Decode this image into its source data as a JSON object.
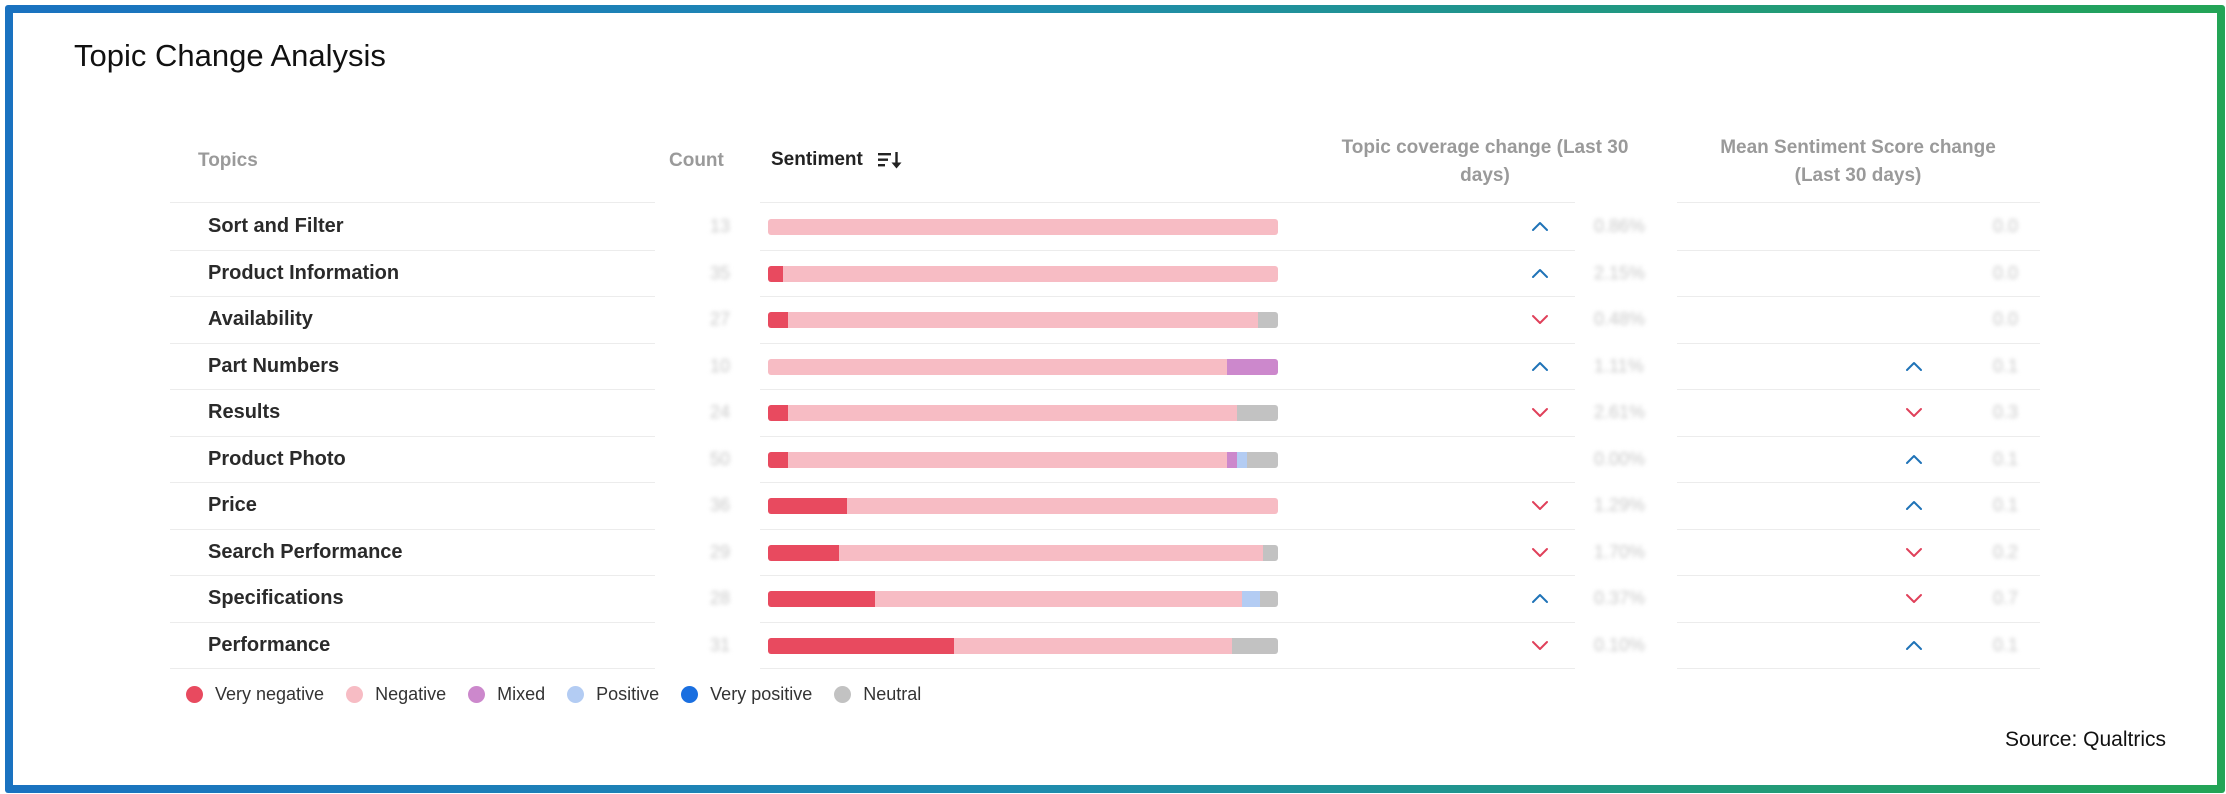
{
  "title": "Topic Change Analysis",
  "source": "Source: Qualtrics",
  "colors": {
    "very_negative": "#e84a5f",
    "negative": "#f7bcc4",
    "mixed": "#cc88cc",
    "positive": "#b3ccf3",
    "very_positive": "#1a6fe0",
    "neutral": "#c2c2c2",
    "arrow_up": "#1f73b7",
    "arrow_down": "#e0405a"
  },
  "columns": {
    "topics": "Topics",
    "count": "Count",
    "sentiment": "Sentiment",
    "coverage_line1": "Topic coverage change (Last 30",
    "coverage_line2": "days)",
    "mean_line1": "Mean Sentiment Score change",
    "mean_line2": "(Last 30 days)"
  },
  "rows": [
    {
      "topic": "Sort and Filter",
      "count": "13",
      "sentiment": {
        "very_negative": 0,
        "negative": 100,
        "mixed": 0,
        "positive": 0,
        "neutral": 0
      },
      "coverage_dir": "up",
      "coverage": "0.86%",
      "mean_dir": "",
      "mean": "0.0"
    },
    {
      "topic": "Product Information",
      "count": "35",
      "sentiment": {
        "very_negative": 3,
        "negative": 97,
        "mixed": 0,
        "positive": 0,
        "neutral": 0
      },
      "coverage_dir": "up",
      "coverage": "2.15%",
      "mean_dir": "",
      "mean": "0.0"
    },
    {
      "topic": "Availability",
      "count": "27",
      "sentiment": {
        "very_negative": 4,
        "negative": 92,
        "mixed": 0,
        "positive": 0,
        "neutral": 4
      },
      "coverage_dir": "down",
      "coverage": "0.48%",
      "mean_dir": "",
      "mean": "0.0"
    },
    {
      "topic": "Part Numbers",
      "count": "10",
      "sentiment": {
        "very_negative": 0,
        "negative": 90,
        "mixed": 10,
        "positive": 0,
        "neutral": 0
      },
      "coverage_dir": "up",
      "coverage": "1.11%",
      "mean_dir": "up",
      "mean": "0.1"
    },
    {
      "topic": "Results",
      "count": "24",
      "sentiment": {
        "very_negative": 4,
        "negative": 88,
        "mixed": 0,
        "positive": 0,
        "neutral": 8
      },
      "coverage_dir": "down",
      "coverage": "2.61%",
      "mean_dir": "down",
      "mean": "0.3"
    },
    {
      "topic": "Product Photo",
      "count": "50",
      "sentiment": {
        "very_negative": 4,
        "negative": 86,
        "mixed": 2,
        "positive": 2,
        "neutral": 6
      },
      "coverage_dir": "",
      "coverage": "0.00%",
      "mean_dir": "up",
      "mean": "0.1"
    },
    {
      "topic": "Price",
      "count": "36",
      "sentiment": {
        "very_negative": 15.5,
        "negative": 84.5,
        "mixed": 0,
        "positive": 0,
        "neutral": 0
      },
      "coverage_dir": "down",
      "coverage": "1.29%",
      "mean_dir": "up",
      "mean": "0.1"
    },
    {
      "topic": "Search Performance",
      "count": "29",
      "sentiment": {
        "very_negative": 14,
        "negative": 83,
        "mixed": 0,
        "positive": 0,
        "neutral": 3
      },
      "coverage_dir": "down",
      "coverage": "1.70%",
      "mean_dir": "down",
      "mean": "0.2"
    },
    {
      "topic": "Specifications",
      "count": "28",
      "sentiment": {
        "very_negative": 21,
        "negative": 72,
        "mixed": 0,
        "positive": 3.5,
        "neutral": 3.5
      },
      "coverage_dir": "up",
      "coverage": "0.37%",
      "mean_dir": "down",
      "mean": "0.7"
    },
    {
      "topic": "Performance",
      "count": "31",
      "sentiment": {
        "very_negative": 36.5,
        "negative": 54.5,
        "mixed": 0,
        "positive": 0,
        "neutral": 9
      },
      "coverage_dir": "down",
      "coverage": "0.10%",
      "mean_dir": "up",
      "mean": "0.1"
    }
  ],
  "legend": [
    {
      "label": "Very negative",
      "key": "very_negative"
    },
    {
      "label": "Negative",
      "key": "negative"
    },
    {
      "label": "Mixed",
      "key": "mixed"
    },
    {
      "label": "Positive",
      "key": "positive"
    },
    {
      "label": "Very positive",
      "key": "very_positive"
    },
    {
      "label": "Neutral",
      "key": "neutral"
    }
  ]
}
